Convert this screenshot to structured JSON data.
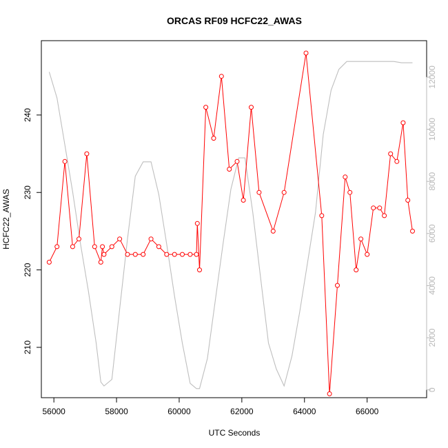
{
  "chart_data": {
    "type": "line",
    "title": "ORCAS RF09 HCFC22_AWAS",
    "xlabel": "UTC Seconds",
    "ylabel": "HCFC22_AWAS",
    "xlim": [
      55600,
      67900
    ],
    "ylim": [
      203.5,
      249.6
    ],
    "y2lim": [
      -300,
      13400
    ],
    "x_ticks": [
      56000,
      58000,
      60000,
      62000,
      64000,
      66000
    ],
    "y_ticks": [
      210,
      220,
      230,
      240
    ],
    "y2_ticks": [
      0,
      2000,
      4000,
      6000,
      8000,
      10000,
      12000
    ],
    "grid": false,
    "colors": {
      "primary": "#ff0000",
      "secondary": "#bebebe"
    },
    "series": [
      {
        "axis": "left",
        "style": "line+markers",
        "x": [
          55850,
          56100,
          56350,
          56600,
          56800,
          57050,
          57300,
          57500,
          57550,
          57600,
          57850,
          58100,
          58350,
          58600,
          58850,
          59100,
          59350,
          59600,
          59850,
          60100,
          60350,
          60550,
          60580,
          60650,
          60850,
          61100,
          61350,
          61600,
          61850,
          62050,
          62300,
          62550,
          63000,
          63350,
          64050,
          64550,
          64800,
          65050,
          65300,
          65450,
          65650,
          65800,
          66000,
          66200,
          66400,
          66550,
          66750,
          66950,
          67150,
          67300,
          67450
        ],
        "values": [
          221,
          223,
          234,
          223,
          224,
          235,
          223,
          221,
          223,
          222,
          223,
          224,
          222,
          222,
          222,
          224,
          223,
          222,
          222,
          222,
          222,
          222,
          226,
          220,
          241,
          237,
          245,
          233,
          234,
          229,
          241,
          230,
          225,
          230,
          248,
          227,
          204,
          218,
          232,
          230,
          220,
          224,
          222,
          228,
          228,
          227,
          235,
          234,
          239,
          229,
          225
        ]
      },
      {
        "axis": "right",
        "style": "line",
        "x": [
          55850,
          56100,
          56350,
          56600,
          56850,
          57100,
          57350,
          57500,
          57600,
          57850,
          58100,
          58350,
          58600,
          58850,
          59100,
          59350,
          59600,
          59850,
          60100,
          60350,
          60550,
          60650,
          60900,
          61150,
          61400,
          61650,
          61900,
          62100,
          62350,
          62600,
          62850,
          63100,
          63350,
          63600,
          63850,
          64100,
          64350,
          64600,
          64850,
          65100,
          65350,
          65600,
          65850,
          66100,
          66350,
          66600,
          66850,
          67100,
          67450
        ],
        "values": [
          12200,
          11200,
          9400,
          7600,
          5600,
          3800,
          1800,
          300,
          150,
          400,
          3100,
          5800,
          8200,
          8750,
          8750,
          7500,
          5600,
          3600,
          1800,
          250,
          50,
          50,
          1200,
          3400,
          5600,
          7700,
          8900,
          8900,
          6800,
          4300,
          1800,
          800,
          150,
          1300,
          3000,
          4900,
          6800,
          9800,
          11500,
          12300,
          12600,
          12600,
          12600,
          12600,
          12600,
          12600,
          12600,
          12550,
          12550
        ]
      }
    ]
  }
}
